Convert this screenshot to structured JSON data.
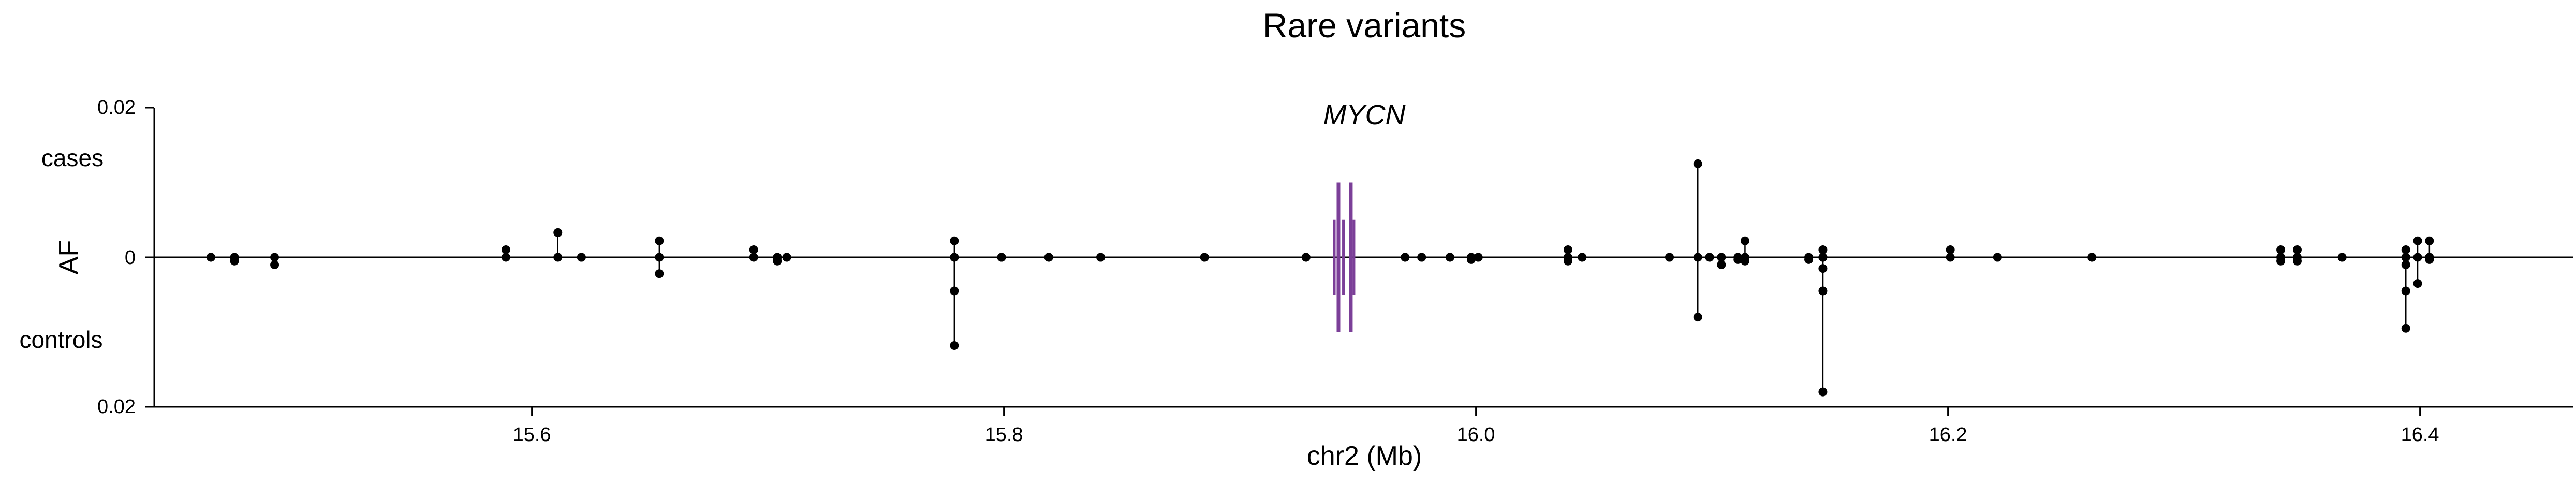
{
  "chart_data": {
    "type": "scatter",
    "title": "Rare variants",
    "xlabel": "chr2 (Mb)",
    "ylabel": "AF",
    "upper_label": "cases",
    "lower_label": "controls",
    "xlim": [
      15.44,
      16.465
    ],
    "xticks": [
      "15.6",
      "15.8",
      "16.0",
      "16.2",
      "16.4"
    ],
    "xtick_values": [
      15.6,
      15.8,
      16.0,
      16.2,
      16.4
    ],
    "ylim": [
      -0.02,
      0.02
    ],
    "yticks": [
      "0.02",
      "0",
      "0.02"
    ],
    "ytick_values": [
      0.02,
      0.0,
      -0.02
    ],
    "gene": {
      "name": "MYCN",
      "start": 15.94,
      "end": 15.947,
      "color": "#7b3f98"
    },
    "variants": [
      {
        "x": 15.464,
        "case": 0.0,
        "control": 0.0
      },
      {
        "x": 15.474,
        "case": 0.0,
        "control": -0.0005
      },
      {
        "x": 15.491,
        "case": 0.0,
        "control": -0.001
      },
      {
        "x": 15.589,
        "case": 0.001,
        "control": 0.0
      },
      {
        "x": 15.611,
        "case": 0.0033,
        "control": 0.0
      },
      {
        "x": 15.621,
        "case": 0.0,
        "control": 0.0
      },
      {
        "x": 15.654,
        "case": 0.0022,
        "control": -0.0022
      },
      {
        "x": 15.694,
        "case": 0.001,
        "control": 0.0
      },
      {
        "x": 15.704,
        "case": 0.0,
        "control": -0.0005
      },
      {
        "x": 15.708,
        "case": 0.0,
        "control": 0.0
      },
      {
        "x": 15.779,
        "case": 0.0022,
        "control": -0.0118
      },
      {
        "x": 15.779,
        "case": 0.0,
        "control": -0.0045
      },
      {
        "x": 15.799,
        "case": 0.0,
        "control": 0.0
      },
      {
        "x": 15.819,
        "case": 0.0,
        "control": 0.0
      },
      {
        "x": 15.841,
        "case": 0.0,
        "control": 0.0
      },
      {
        "x": 15.885,
        "case": 0.0,
        "control": 0.0
      },
      {
        "x": 15.928,
        "case": 0.0,
        "control": 0.0
      },
      {
        "x": 15.97,
        "case": 0.0,
        "control": 0.0
      },
      {
        "x": 15.977,
        "case": 0.0,
        "control": 0.0
      },
      {
        "x": 15.989,
        "case": 0.0,
        "control": 0.0
      },
      {
        "x": 15.998,
        "case": 0.0,
        "control": -0.0003
      },
      {
        "x": 16.001,
        "case": 0.0,
        "control": 0.0
      },
      {
        "x": 16.039,
        "case": 0.001,
        "control": -0.0005
      },
      {
        "x": 16.045,
        "case": 0.0,
        "control": 0.0
      },
      {
        "x": 16.082,
        "case": 0.0,
        "control": 0.0
      },
      {
        "x": 16.094,
        "case": 0.0125,
        "control": -0.008
      },
      {
        "x": 16.099,
        "case": 0.0,
        "control": 0.0
      },
      {
        "x": 16.104,
        "case": 0.0,
        "control": -0.001
      },
      {
        "x": 16.111,
        "case": 0.0,
        "control": -0.0003
      },
      {
        "x": 16.114,
        "case": 0.0022,
        "control": -0.0005
      },
      {
        "x": 16.141,
        "case": 0.0,
        "control": -0.0003
      },
      {
        "x": 16.147,
        "case": 0.001,
        "control": -0.018
      },
      {
        "x": 16.147,
        "case": 0.0,
        "control": -0.0015
      },
      {
        "x": 16.147,
        "case": 0.0,
        "control": -0.0045
      },
      {
        "x": 16.201,
        "case": 0.001,
        "control": 0.0
      },
      {
        "x": 16.221,
        "case": 0.0,
        "control": 0.0
      },
      {
        "x": 16.261,
        "case": 0.0,
        "control": 0.0
      },
      {
        "x": 16.341,
        "case": 0.001,
        "control": -0.0005
      },
      {
        "x": 16.348,
        "case": 0.001,
        "control": -0.0005
      },
      {
        "x": 16.367,
        "case": 0.0,
        "control": 0.0
      },
      {
        "x": 16.394,
        "case": 0.001,
        "control": -0.0095
      },
      {
        "x": 16.394,
        "case": 0.0,
        "control": -0.0045
      },
      {
        "x": 16.394,
        "case": 0.0,
        "control": -0.001
      },
      {
        "x": 16.399,
        "case": 0.0022,
        "control": -0.0035
      },
      {
        "x": 16.404,
        "case": 0.0022,
        "control": 0.0
      },
      {
        "x": 16.404,
        "case": 0.0,
        "control": -0.0003
      }
    ]
  }
}
